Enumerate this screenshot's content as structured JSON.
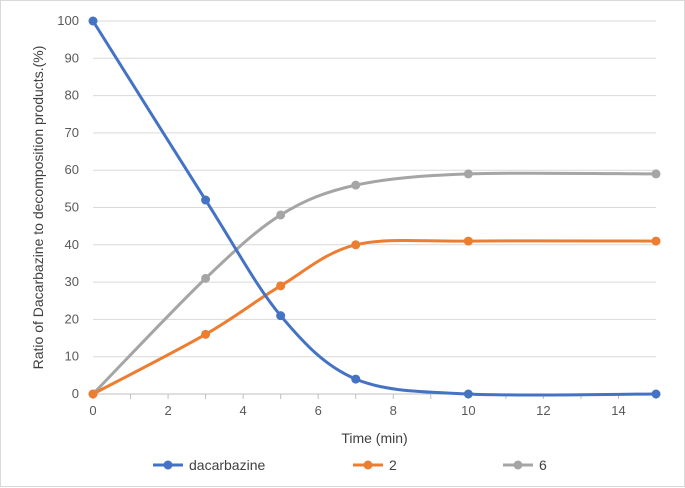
{
  "chart_data": {
    "type": "line",
    "xlabel": "Time (min)",
    "ylabel": "Ratio of Dacarbazine to decomposition products.(%)",
    "xlim": [
      0,
      15
    ],
    "ylim": [
      0,
      100
    ],
    "x_ticks": [
      0,
      2,
      4,
      6,
      8,
      10,
      12,
      14
    ],
    "y_ticks": [
      0,
      10,
      20,
      30,
      40,
      50,
      60,
      70,
      80,
      90,
      100
    ],
    "grid": "horizontal",
    "legend_position": "bottom",
    "smooth": true,
    "x": [
      0,
      3,
      5,
      7,
      10,
      15
    ],
    "series": [
      {
        "name": "dacarbazine",
        "color": "#4472C4",
        "values": [
          100,
          52,
          21,
          4,
          0,
          0
        ]
      },
      {
        "name": "2",
        "color": "#ED7D31",
        "values": [
          0,
          16,
          29,
          40,
          41,
          41
        ]
      },
      {
        "name": "6",
        "color": "#A5A5A5",
        "values": [
          0,
          31,
          48,
          56,
          59,
          59
        ]
      }
    ]
  }
}
